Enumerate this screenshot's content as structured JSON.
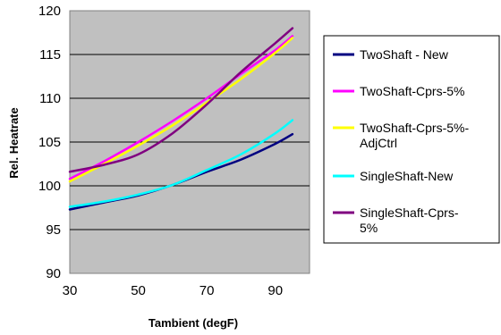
{
  "chart_data": {
    "type": "line",
    "title": "",
    "xlabel": "Tambient (degF)",
    "ylabel": "Rel. Heatrate",
    "xlim": [
      30,
      100
    ],
    "ylim": [
      90,
      120
    ],
    "xticks": [
      30,
      50,
      70,
      90
    ],
    "yticks": [
      90,
      95,
      100,
      105,
      110,
      115,
      120
    ],
    "grid": "horizontal",
    "plot_background": "#c0c0c0",
    "legend_position": "right",
    "series": [
      {
        "name": "TwoShaft - New",
        "color": "#000080",
        "x": [
          30,
          40,
          50,
          60,
          70,
          80,
          90,
          95
        ],
        "y": [
          97.3,
          98.1,
          98.9,
          100.1,
          101.6,
          103.0,
          104.8,
          105.9
        ]
      },
      {
        "name": "TwoShaft-Cprs-5%",
        "color": "#ff00ff",
        "x": [
          30,
          40,
          50,
          60,
          70,
          80,
          90,
          95
        ],
        "y": [
          100.8,
          102.8,
          105.0,
          107.4,
          110.0,
          112.8,
          115.5,
          117.1
        ]
      },
      {
        "name": "TwoShaft-Cprs-5%-AdjCtrl",
        "name_lines": [
          "TwoShaft-Cprs-5%-",
          "AdjCtrl"
        ],
        "color": "#ffff00",
        "x": [
          30,
          40,
          50,
          60,
          70,
          80,
          90,
          95
        ],
        "y": [
          100.5,
          102.5,
          104.6,
          106.9,
          109.5,
          112.2,
          115.2,
          116.9
        ]
      },
      {
        "name": "SingleShaft-New",
        "color": "#00ffff",
        "x": [
          30,
          40,
          50,
          60,
          70,
          80,
          90,
          95
        ],
        "y": [
          97.6,
          98.2,
          99.0,
          100.1,
          101.8,
          103.6,
          106.0,
          107.5
        ]
      },
      {
        "name": "SingleShaft-Cprs-5%",
        "name_lines": [
          "SingleShaft-Cprs-",
          "5%"
        ],
        "color": "#800080",
        "x": [
          30,
          40,
          50,
          60,
          70,
          80,
          90,
          95
        ],
        "y": [
          101.6,
          102.4,
          103.6,
          106.0,
          109.3,
          113.0,
          116.3,
          118.0
        ]
      }
    ]
  }
}
